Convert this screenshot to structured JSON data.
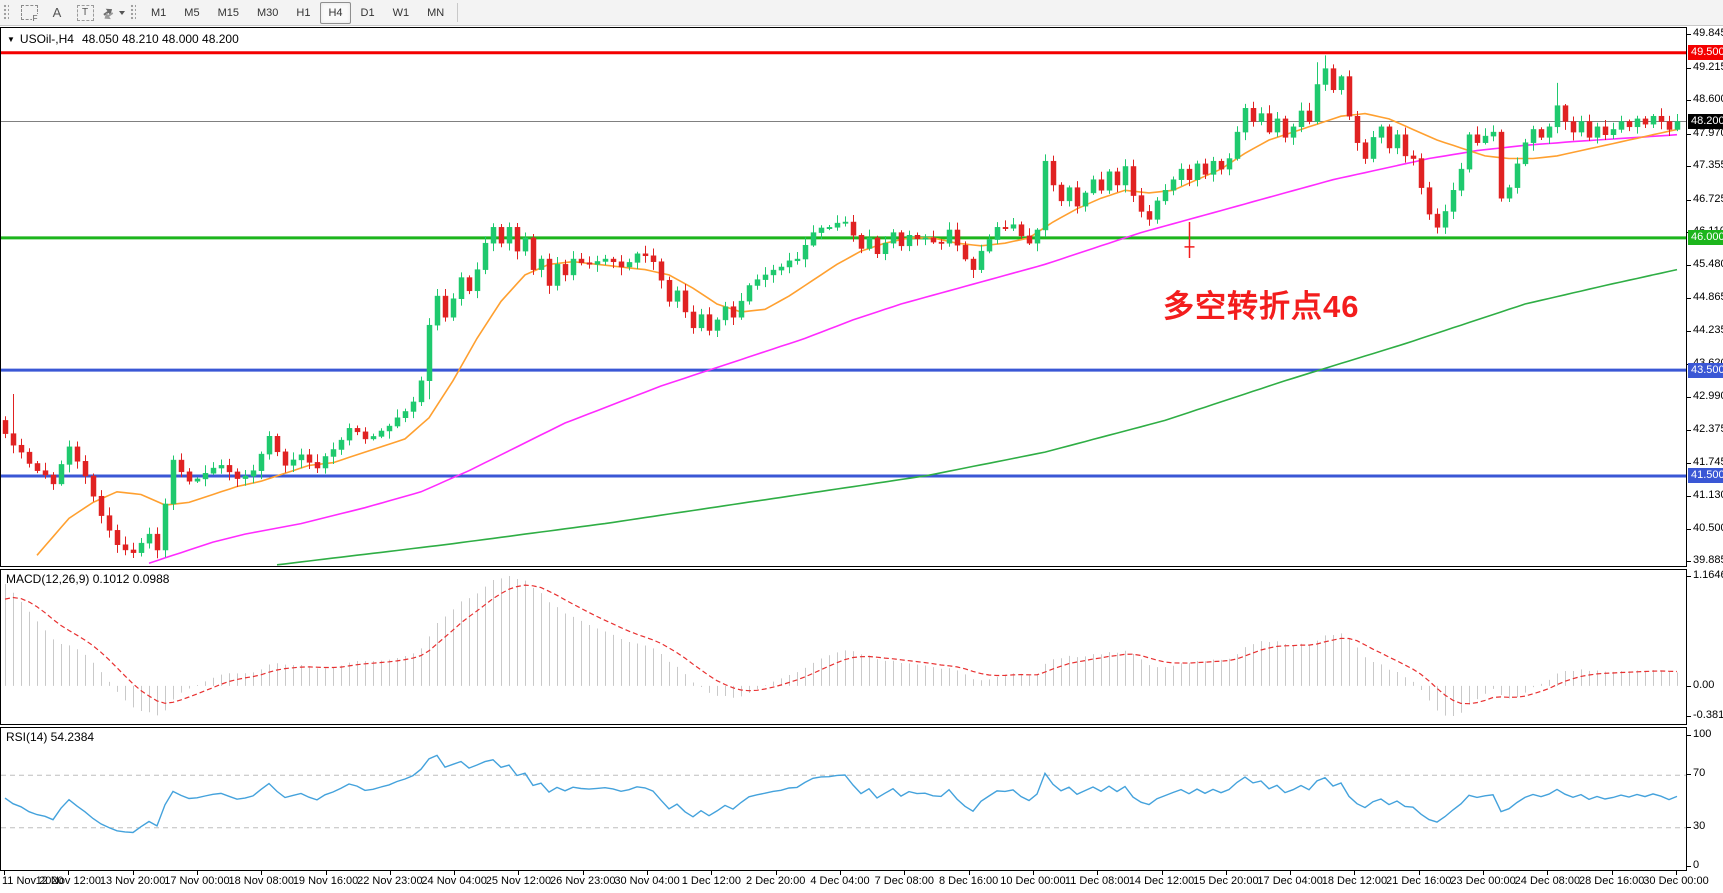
{
  "toolbar": {
    "icons": {
      "template_letter": "F",
      "text_letter": "A",
      "textbox_letter": "T",
      "caret": "▾"
    },
    "timeframes": {
      "items": [
        "M1",
        "M5",
        "M15",
        "M30",
        "H1",
        "H4",
        "D1",
        "W1",
        "MN"
      ],
      "active": "H4"
    }
  },
  "chart": {
    "title_caret": "▼",
    "symbol_period": "USOil-,H4",
    "ohlc": "48.050 48.210 48.000 48.200",
    "annotation": {
      "text": "多空转折点46",
      "color": "#F31D1D"
    },
    "price_axis_ticks": [
      "49.845",
      "49.215",
      "48.600",
      "47.970",
      "47.355",
      "46.725",
      "46.110",
      "45.480",
      "44.865",
      "44.235",
      "43.620",
      "42.990",
      "42.375",
      "41.745",
      "41.130",
      "40.500",
      "39.885"
    ],
    "levels": [
      {
        "price": 49.5,
        "label": "49.500",
        "line_color": "#F40000",
        "badge_color": "#F40000",
        "width": 3
      },
      {
        "price": 46.0,
        "label": "46.000",
        "line_color": "#1CB51C",
        "badge_color": "#1CB51C",
        "width": 3
      },
      {
        "price": 43.5,
        "label": "43.500",
        "line_color": "#3A57D5",
        "badge_color": "#3A57D5",
        "width": 3
      },
      {
        "price": 41.5,
        "label": "41.500",
        "line_color": "#3A57D5",
        "badge_color": "#3A57D5",
        "width": 3
      },
      {
        "price": 48.2,
        "label": "48.200",
        "line_color": "#808080",
        "badge_color": "#000000",
        "width": 1
      }
    ]
  },
  "macd": {
    "label": "MACD(12,26,9) 0.1012 0.0988",
    "axis": [
      "1.1646",
      "0.00",
      "-0.3812"
    ],
    "hist_color": "#C9C9C9",
    "signal_color": "#E83030"
  },
  "rsi": {
    "label": "RSI(14) 54.2384",
    "axis": [
      "100",
      "70",
      "30",
      "0"
    ],
    "levels": [
      70,
      30
    ],
    "line_color": "#44A2DC",
    "level_color": "#BDBDBD"
  },
  "time_axis": {
    "labels": [
      "11 Nov 2020",
      "12 Nov 12:00",
      "13 Nov 20:00",
      "17 Nov 00:00",
      "18 Nov 08:00",
      "19 Nov 16:00",
      "22 Nov 23:00",
      "24 Nov 04:00",
      "25 Nov 12:00",
      "26 Nov 23:00",
      "30 Nov 04:00",
      "1 Dec 12:00",
      "2 Dec 20:00",
      "4 Dec 04:00",
      "7 Dec 08:00",
      "8 Dec 16:00",
      "10 Dec 00:00",
      "11 Dec 08:00",
      "14 Dec 12:00",
      "15 Dec 20:00",
      "17 Dec 04:00",
      "18 Dec 12:00",
      "21 Dec 16:00",
      "23 Dec 00:00",
      "24 Dec 08:00",
      "28 Dec 16:00",
      "30 Dec 00:00"
    ]
  },
  "chart_data": {
    "type": "candlestick",
    "symbol": "USOil-",
    "timeframe": "H4",
    "bars_total": 210,
    "first_open": 42.55,
    "price_range_top": 49.93,
    "price_range_bottom": 39.78,
    "up_color": "#1FC96E",
    "down_color": "#E02222",
    "close_anchors": [
      [
        0,
        42.3
      ],
      [
        2,
        41.95
      ],
      [
        4,
        41.6
      ],
      [
        6,
        41.35
      ],
      [
        8,
        42.05
      ],
      [
        10,
        41.5
      ],
      [
        12,
        40.75
      ],
      [
        14,
        40.2
      ],
      [
        16,
        40.05
      ],
      [
        18,
        40.4
      ],
      [
        19,
        40.1
      ],
      [
        21,
        41.8
      ],
      [
        23,
        41.4
      ],
      [
        25,
        41.55
      ],
      [
        27,
        41.7
      ],
      [
        29,
        41.45
      ],
      [
        31,
        41.6
      ],
      [
        33,
        42.25
      ],
      [
        35,
        41.7
      ],
      [
        37,
        41.9
      ],
      [
        39,
        41.65
      ],
      [
        41,
        42.0
      ],
      [
        43,
        42.4
      ],
      [
        45,
        42.2
      ],
      [
        47,
        42.35
      ],
      [
        49,
        42.6
      ],
      [
        51,
        42.9
      ],
      [
        52,
        43.3
      ],
      [
        53,
        44.35
      ],
      [
        54,
        44.9
      ],
      [
        55,
        44.5
      ],
      [
        56,
        44.85
      ],
      [
        57,
        45.25
      ],
      [
        58,
        45.0
      ],
      [
        59,
        45.4
      ],
      [
        60,
        45.9
      ],
      [
        61,
        46.2
      ],
      [
        62,
        45.9
      ],
      [
        63,
        46.2
      ],
      [
        64,
        45.75
      ],
      [
        65,
        46.0
      ],
      [
        66,
        45.4
      ],
      [
        67,
        45.6
      ],
      [
        68,
        45.1
      ],
      [
        69,
        45.5
      ],
      [
        70,
        45.3
      ],
      [
        71,
        45.6
      ],
      [
        73,
        45.5
      ],
      [
        75,
        45.6
      ],
      [
        77,
        45.45
      ],
      [
        79,
        45.7
      ],
      [
        81,
        45.55
      ],
      [
        82,
        45.2
      ],
      [
        83,
        44.8
      ],
      [
        84,
        45.0
      ],
      [
        85,
        44.6
      ],
      [
        86,
        44.3
      ],
      [
        87,
        44.55
      ],
      [
        88,
        44.25
      ],
      [
        89,
        44.45
      ],
      [
        90,
        44.7
      ],
      [
        91,
        44.5
      ],
      [
        93,
        45.1
      ],
      [
        95,
        45.3
      ],
      [
        97,
        45.45
      ],
      [
        99,
        45.6
      ],
      [
        101,
        46.1
      ],
      [
        103,
        46.2
      ],
      [
        105,
        46.3
      ],
      [
        106,
        46.05
      ],
      [
        107,
        45.8
      ],
      [
        108,
        46.0
      ],
      [
        109,
        45.7
      ],
      [
        110,
        45.9
      ],
      [
        111,
        46.1
      ],
      [
        112,
        45.85
      ],
      [
        113,
        46.05
      ],
      [
        115,
        46.0
      ],
      [
        117,
        45.9
      ],
      [
        118,
        46.15
      ],
      [
        120,
        45.6
      ],
      [
        121,
        45.4
      ],
      [
        122,
        45.75
      ],
      [
        124,
        46.2
      ],
      [
        126,
        46.25
      ],
      [
        128,
        45.9
      ],
      [
        129,
        46.15
      ],
      [
        130,
        47.45
      ],
      [
        131,
        47.0
      ],
      [
        132,
        46.7
      ],
      [
        133,
        46.95
      ],
      [
        134,
        46.6
      ],
      [
        135,
        46.85
      ],
      [
        136,
        47.1
      ],
      [
        137,
        46.9
      ],
      [
        138,
        47.25
      ],
      [
        139,
        47.0
      ],
      [
        140,
        47.35
      ],
      [
        141,
        46.8
      ],
      [
        142,
        46.5
      ],
      [
        143,
        46.35
      ],
      [
        144,
        46.7
      ],
      [
        145,
        46.9
      ],
      [
        146,
        47.1
      ],
      [
        147,
        47.3
      ],
      [
        148,
        47.1
      ],
      [
        149,
        47.4
      ],
      [
        150,
        47.2
      ],
      [
        151,
        47.45
      ],
      [
        152,
        47.3
      ],
      [
        153,
        47.5
      ],
      [
        154,
        48.0
      ],
      [
        155,
        48.45
      ],
      [
        156,
        48.2
      ],
      [
        157,
        48.35
      ],
      [
        158,
        48.0
      ],
      [
        159,
        48.25
      ],
      [
        160,
        47.9
      ],
      [
        161,
        48.1
      ],
      [
        162,
        48.4
      ],
      [
        163,
        48.2
      ],
      [
        164,
        48.9
      ],
      [
        165,
        49.2
      ],
      [
        166,
        48.8
      ],
      [
        167,
        49.05
      ],
      [
        168,
        48.3
      ],
      [
        169,
        47.8
      ],
      [
        170,
        47.5
      ],
      [
        171,
        47.9
      ],
      [
        172,
        48.1
      ],
      [
        173,
        47.7
      ],
      [
        174,
        47.95
      ],
      [
        175,
        47.55
      ],
      [
        176,
        47.5
      ],
      [
        177,
        46.95
      ],
      [
        178,
        46.45
      ],
      [
        179,
        46.2
      ],
      [
        180,
        46.5
      ],
      [
        181,
        46.9
      ],
      [
        182,
        47.3
      ],
      [
        183,
        47.95
      ],
      [
        184,
        47.8
      ],
      [
        186,
        48.0
      ],
      [
        187,
        46.75
      ],
      [
        188,
        46.95
      ],
      [
        189,
        47.4
      ],
      [
        190,
        47.8
      ],
      [
        191,
        48.05
      ],
      [
        192,
        47.9
      ],
      [
        193,
        48.1
      ],
      [
        194,
        48.5
      ],
      [
        195,
        48.2
      ],
      [
        196,
        48.0
      ],
      [
        197,
        48.2
      ],
      [
        198,
        47.9
      ],
      [
        199,
        48.1
      ],
      [
        200,
        47.95
      ],
      [
        201,
        48.05
      ],
      [
        202,
        48.2
      ],
      [
        203,
        48.1
      ],
      [
        204,
        48.25
      ],
      [
        205,
        48.15
      ],
      [
        206,
        48.3
      ],
      [
        207,
        48.2
      ],
      [
        208,
        48.05
      ],
      [
        209,
        48.2
      ]
    ],
    "wick_specials": {
      "1": {
        "high": 43.05
      },
      "16": {
        "low": 39.95
      },
      "53": {
        "low": 42.95
      },
      "130": {
        "low": 46.02,
        "high": 47.58
      },
      "164": {
        "high": 49.32
      },
      "165": {
        "high": 49.45
      },
      "166": {
        "high": 49.28
      },
      "187": {
        "high": 48.05
      },
      "194": {
        "high": 48.93
      }
    },
    "ma_fast_orange": {
      "color": "#FFA030",
      "points": [
        [
          4,
          40.0
        ],
        [
          6,
          40.35
        ],
        [
          8,
          40.7
        ],
        [
          11,
          41.0
        ],
        [
          14,
          41.2
        ],
        [
          17,
          41.15
        ],
        [
          20,
          40.95
        ],
        [
          23,
          41.0
        ],
        [
          26,
          41.15
        ],
        [
          29,
          41.3
        ],
        [
          32,
          41.4
        ],
        [
          35,
          41.55
        ],
        [
          38,
          41.7
        ],
        [
          41,
          41.75
        ],
        [
          44,
          41.9
        ],
        [
          47,
          42.05
        ],
        [
          50,
          42.2
        ],
        [
          53,
          42.6
        ],
        [
          56,
          43.3
        ],
        [
          59,
          44.1
        ],
        [
          62,
          44.8
        ],
        [
          65,
          45.3
        ],
        [
          68,
          45.5
        ],
        [
          71,
          45.55
        ],
        [
          74,
          45.5
        ],
        [
          77,
          45.45
        ],
        [
          80,
          45.4
        ],
        [
          83,
          45.3
        ],
        [
          86,
          45.05
        ],
        [
          89,
          44.75
        ],
        [
          92,
          44.6
        ],
        [
          95,
          44.65
        ],
        [
          98,
          44.9
        ],
        [
          101,
          45.2
        ],
        [
          104,
          45.5
        ],
        [
          107,
          45.75
        ],
        [
          110,
          45.9
        ],
        [
          113,
          46.0
        ],
        [
          116,
          46.0
        ],
        [
          119,
          45.9
        ],
        [
          122,
          45.85
        ],
        [
          125,
          45.9
        ],
        [
          128,
          46.0
        ],
        [
          131,
          46.3
        ],
        [
          134,
          46.55
        ],
        [
          137,
          46.75
        ],
        [
          140,
          46.9
        ],
        [
          143,
          46.85
        ],
        [
          146,
          46.9
        ],
        [
          149,
          47.1
        ],
        [
          152,
          47.3
        ],
        [
          155,
          47.6
        ],
        [
          158,
          47.85
        ],
        [
          161,
          48.0
        ],
        [
          164,
          48.15
        ],
        [
          167,
          48.3
        ],
        [
          170,
          48.35
        ],
        [
          173,
          48.25
        ],
        [
          176,
          48.05
        ],
        [
          179,
          47.85
        ],
        [
          182,
          47.7
        ],
        [
          185,
          47.55
        ],
        [
          188,
          47.5
        ],
        [
          191,
          47.5
        ],
        [
          194,
          47.55
        ],
        [
          197,
          47.65
        ],
        [
          200,
          47.75
        ],
        [
          203,
          47.85
        ],
        [
          206,
          47.95
        ],
        [
          209,
          48.05
        ]
      ]
    },
    "ma_mid_magenta": {
      "color": "#FF2BFF",
      "points": [
        [
          18,
          39.85
        ],
        [
          22,
          40.05
        ],
        [
          26,
          40.25
        ],
        [
          30,
          40.4
        ],
        [
          37,
          40.6
        ],
        [
          45,
          40.9
        ],
        [
          52,
          41.2
        ],
        [
          58,
          41.6
        ],
        [
          64,
          42.05
        ],
        [
          70,
          42.5
        ],
        [
          76,
          42.85
        ],
        [
          82,
          43.2
        ],
        [
          88,
          43.5
        ],
        [
          94,
          43.8
        ],
        [
          100,
          44.1
        ],
        [
          106,
          44.45
        ],
        [
          112,
          44.75
        ],
        [
          118,
          45.0
        ],
        [
          124,
          45.25
        ],
        [
          130,
          45.5
        ],
        [
          136,
          45.8
        ],
        [
          142,
          46.1
        ],
        [
          148,
          46.35
        ],
        [
          154,
          46.6
        ],
        [
          160,
          46.85
        ],
        [
          166,
          47.1
        ],
        [
          172,
          47.3
        ],
        [
          178,
          47.5
        ],
        [
          184,
          47.65
        ],
        [
          190,
          47.75
        ],
        [
          196,
          47.82
        ],
        [
          202,
          47.88
        ],
        [
          209,
          47.95
        ]
      ]
    },
    "ma_slow_green": {
      "color": "#2FAE45",
      "points": [
        [
          34,
          39.82
        ],
        [
          55,
          40.2
        ],
        [
          75,
          40.6
        ],
        [
          95,
          41.05
        ],
        [
          115,
          41.5
        ],
        [
          130,
          41.95
        ],
        [
          145,
          42.55
        ],
        [
          160,
          43.3
        ],
        [
          175,
          44.0
        ],
        [
          190,
          44.75
        ],
        [
          200,
          45.1
        ],
        [
          209,
          45.4
        ]
      ]
    },
    "red_marker": {
      "bar": 148,
      "from_price": 46.3,
      "to_price": 45.62,
      "tick_price": 45.83,
      "color": "#F31D1D"
    }
  }
}
